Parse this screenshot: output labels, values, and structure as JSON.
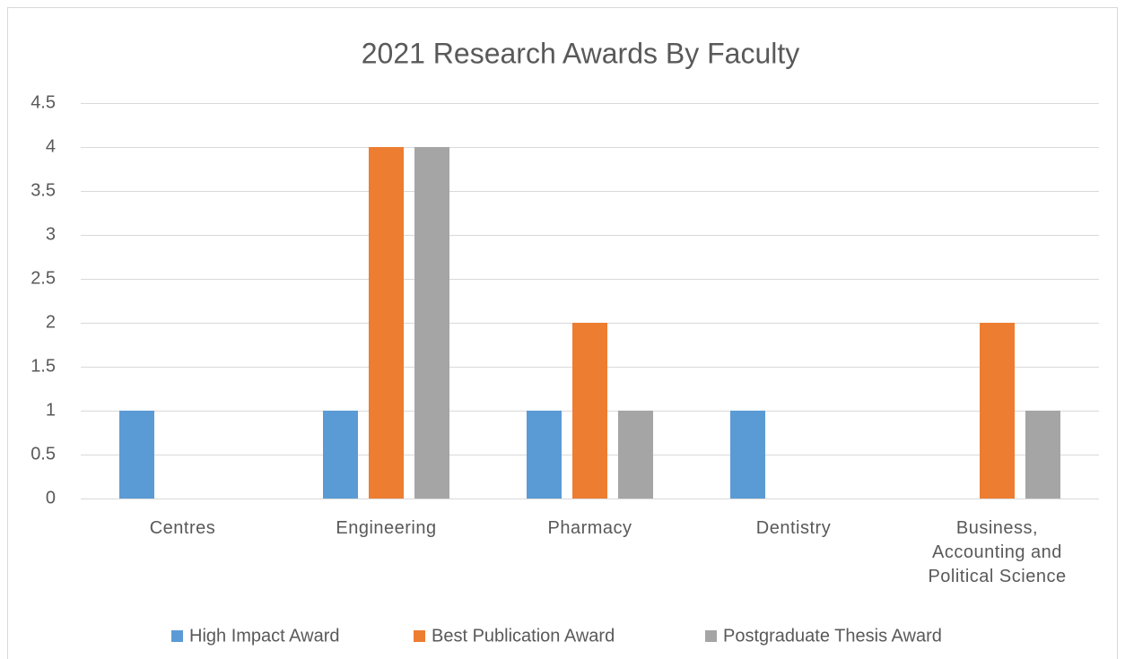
{
  "chart_data": {
    "type": "bar",
    "title": "2021 Research Awards By Faculty",
    "categories": [
      "Centres",
      "Engineering",
      "Pharmacy",
      "Dentistry",
      "Business, Accounting and Political Science"
    ],
    "series": [
      {
        "name": "High Impact Award",
        "color": "#5b9bd5",
        "values": [
          1,
          1,
          1,
          1,
          0
        ]
      },
      {
        "name": "Best Publication Award",
        "color": "#ed7d31",
        "values": [
          0,
          4,
          2,
          0,
          2
        ]
      },
      {
        "name": "Postgraduate Thesis Award",
        "color": "#a5a5a5",
        "values": [
          0,
          4,
          1,
          0,
          1
        ]
      }
    ],
    "ylim": [
      0,
      4.5
    ],
    "yticks": [
      0,
      0.5,
      1,
      1.5,
      2,
      2.5,
      3,
      3.5,
      4,
      4.5
    ],
    "grid": true,
    "legend": "bottom"
  }
}
